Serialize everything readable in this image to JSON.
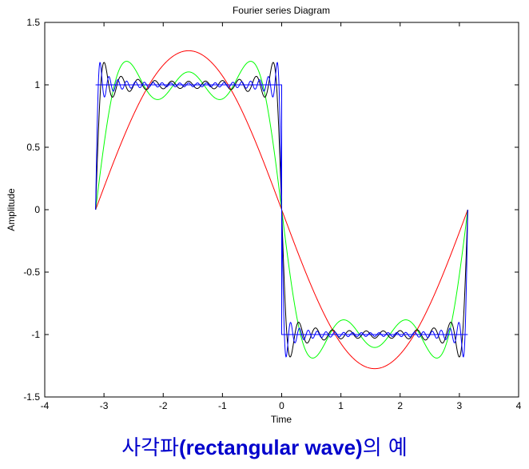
{
  "chart_data": {
    "type": "line",
    "title": "Fourier series Diagram",
    "xlabel": "Time",
    "ylabel": "Amplitude",
    "xlim": [
      -4,
      4
    ],
    "ylim": [
      -1.5,
      1.5
    ],
    "x_ticks": [
      "-4",
      "-3",
      "-2",
      "-1",
      "0",
      "1",
      "2",
      "3",
      "4"
    ],
    "y_ticks": [
      "-1.5",
      "-1",
      "-0.5",
      "0",
      "0.5",
      "1",
      "1.5"
    ],
    "grid": false,
    "x_range_of_curves": [
      -3.1416,
      3.1416
    ],
    "series": [
      {
        "kind": "square_wave",
        "color": "#0000ff",
        "amplitude": 1,
        "description_x": [
          -3.1416,
          0,
          0,
          3.1416
        ],
        "description_y": [
          1,
          1,
          -1,
          -1
        ]
      },
      {
        "kind": "fourier_partial_sum",
        "terms": 1,
        "color": "#ff0000",
        "peak": 1.27
      },
      {
        "kind": "fourier_partial_sum",
        "terms": 3,
        "color": "#00ff00",
        "peak": 1.19
      },
      {
        "kind": "fourier_partial_sum",
        "terms": 11,
        "color": "#000000",
        "peak": 1.18
      },
      {
        "kind": "fourier_partial_sum",
        "terms": 21,
        "color": "#0000ff",
        "peak": 1.18
      }
    ]
  },
  "caption": {
    "prefix": "사각파",
    "middle": "(rectangular  wave)",
    "suffix": "의 예",
    "color": "#0000cc"
  }
}
